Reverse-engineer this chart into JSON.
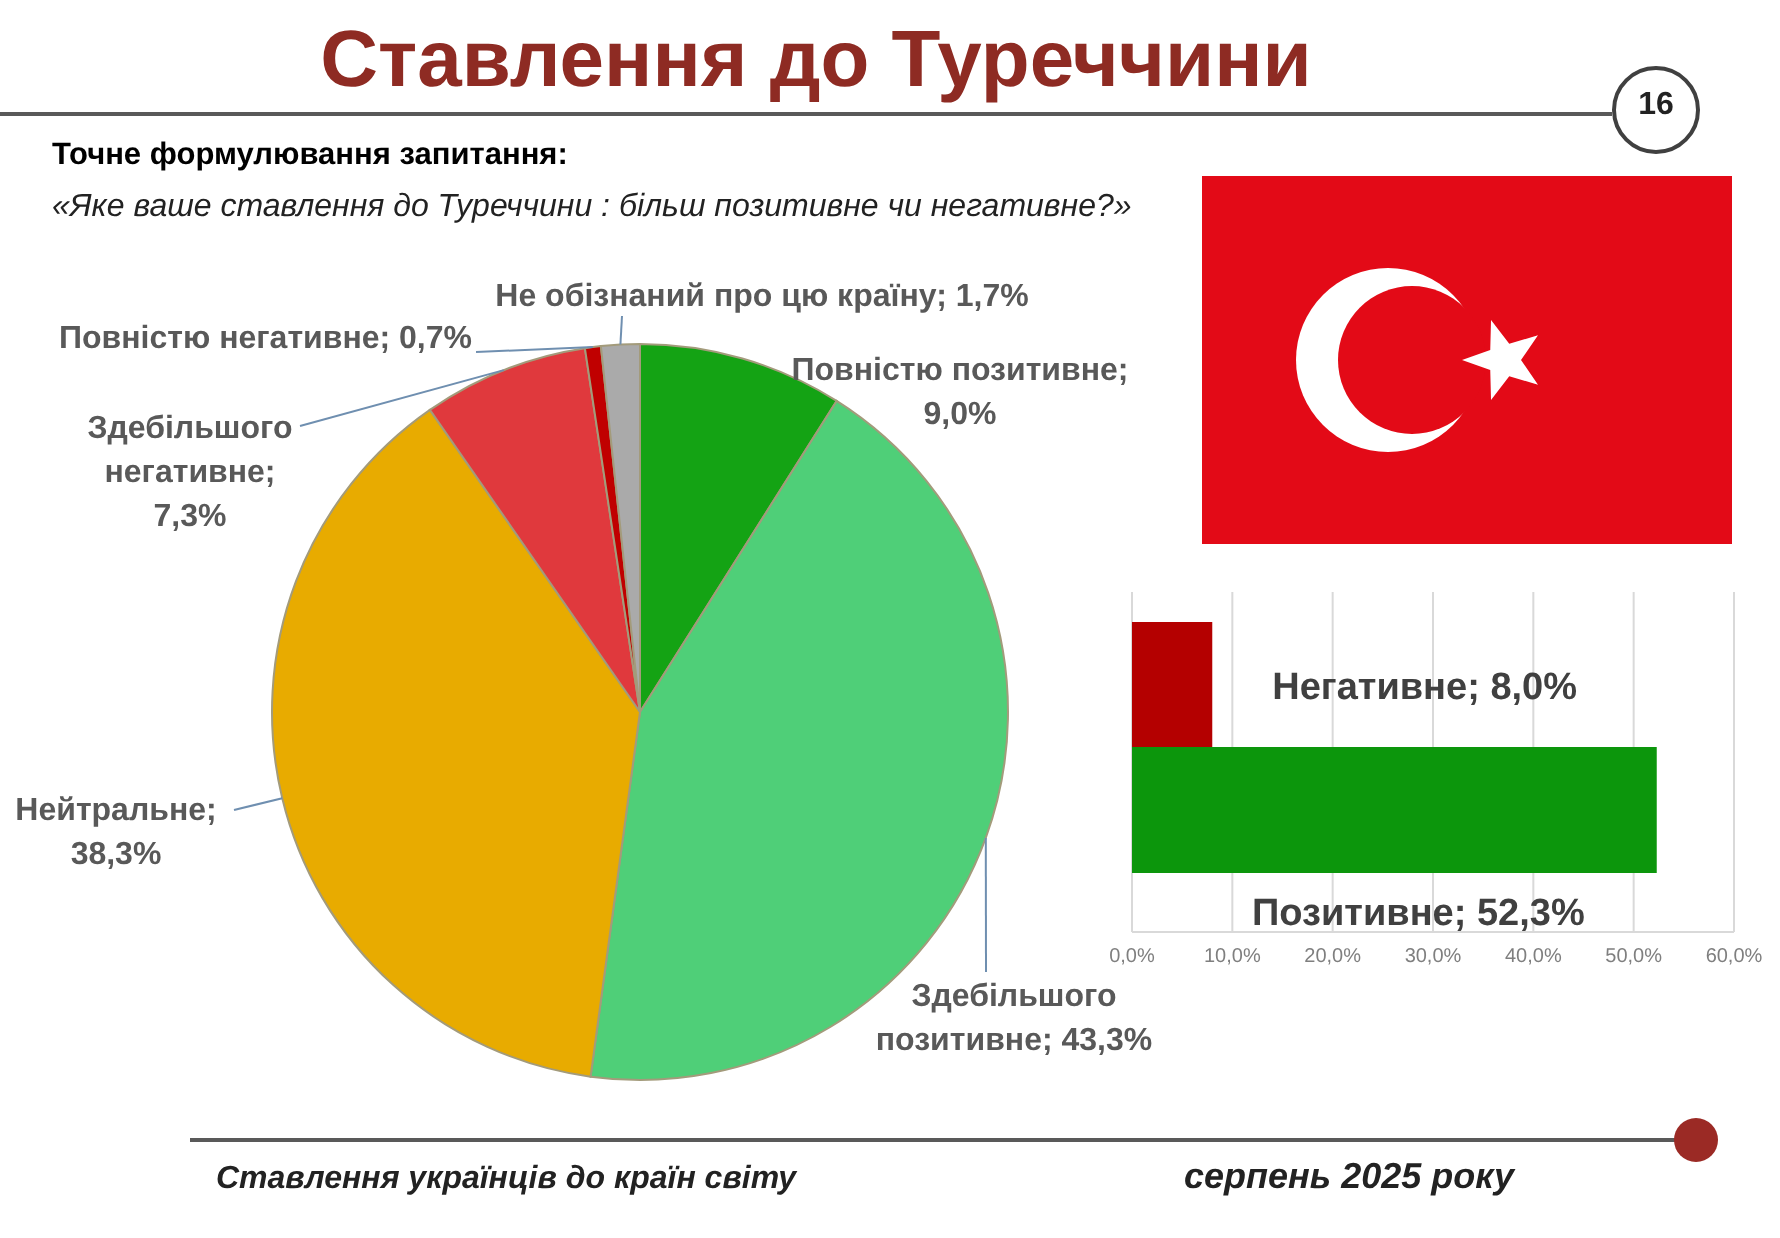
{
  "chart_data": [
    {
      "type": "pie",
      "title": "Ставлення до Туреччини",
      "subtitle": "Точне формулювання запитання:",
      "annotations": [
        "«Яке ваше ставлення до Туреччини : більш позитивне чи негативне?»",
        "16",
        "Ставлення українців до країн світу",
        "серпень 2025 року"
      ],
      "categories": [
        null,
        null,
        null,
        null,
        null,
        null
      ],
      "values": [
        9.0,
        43.3,
        38.3,
        7.3,
        0.7,
        1.7
      ],
      "colors": [
        "#14a314",
        "#4fcf78",
        "#e8ab00",
        "#e0393d",
        "#c00000",
        "#aaaaaa"
      ],
      "value_labels": [
        "Повністю позитивне; 9,0%",
        "Здебільшого позитивне; 43,3%",
        "Нейтральне; 38,3%",
        "Здебільшого негативне; 7,3%",
        "Повністю негативне; 0,7%",
        "Не обізнаний про цю країну; 1,7%"
      ]
    },
    {
      "type": "bar",
      "orientation": "horizontal",
      "categories": [
        null,
        null
      ],
      "values": [
        8.0,
        52.3
      ],
      "colors": [
        "#b40000",
        "#0c960c"
      ],
      "value_labels": [
        "Негативне; 8,0%",
        "Позитивне; 52,3%"
      ],
      "xlim": [
        0,
        60
      ],
      "xticks": [
        {
          "value": 0,
          "label": "0,0%"
        },
        {
          "value": 10,
          "label": "10,0%"
        },
        {
          "value": 20,
          "label": "20,0%"
        },
        {
          "value": 30,
          "label": "30,0%"
        },
        {
          "value": 40,
          "label": "40,0%"
        },
        {
          "value": 50,
          "label": "50,0%"
        },
        {
          "value": 60,
          "label": "60,0%"
        }
      ],
      "grid": "x",
      "tick_labels": "x"
    }
  ]
}
